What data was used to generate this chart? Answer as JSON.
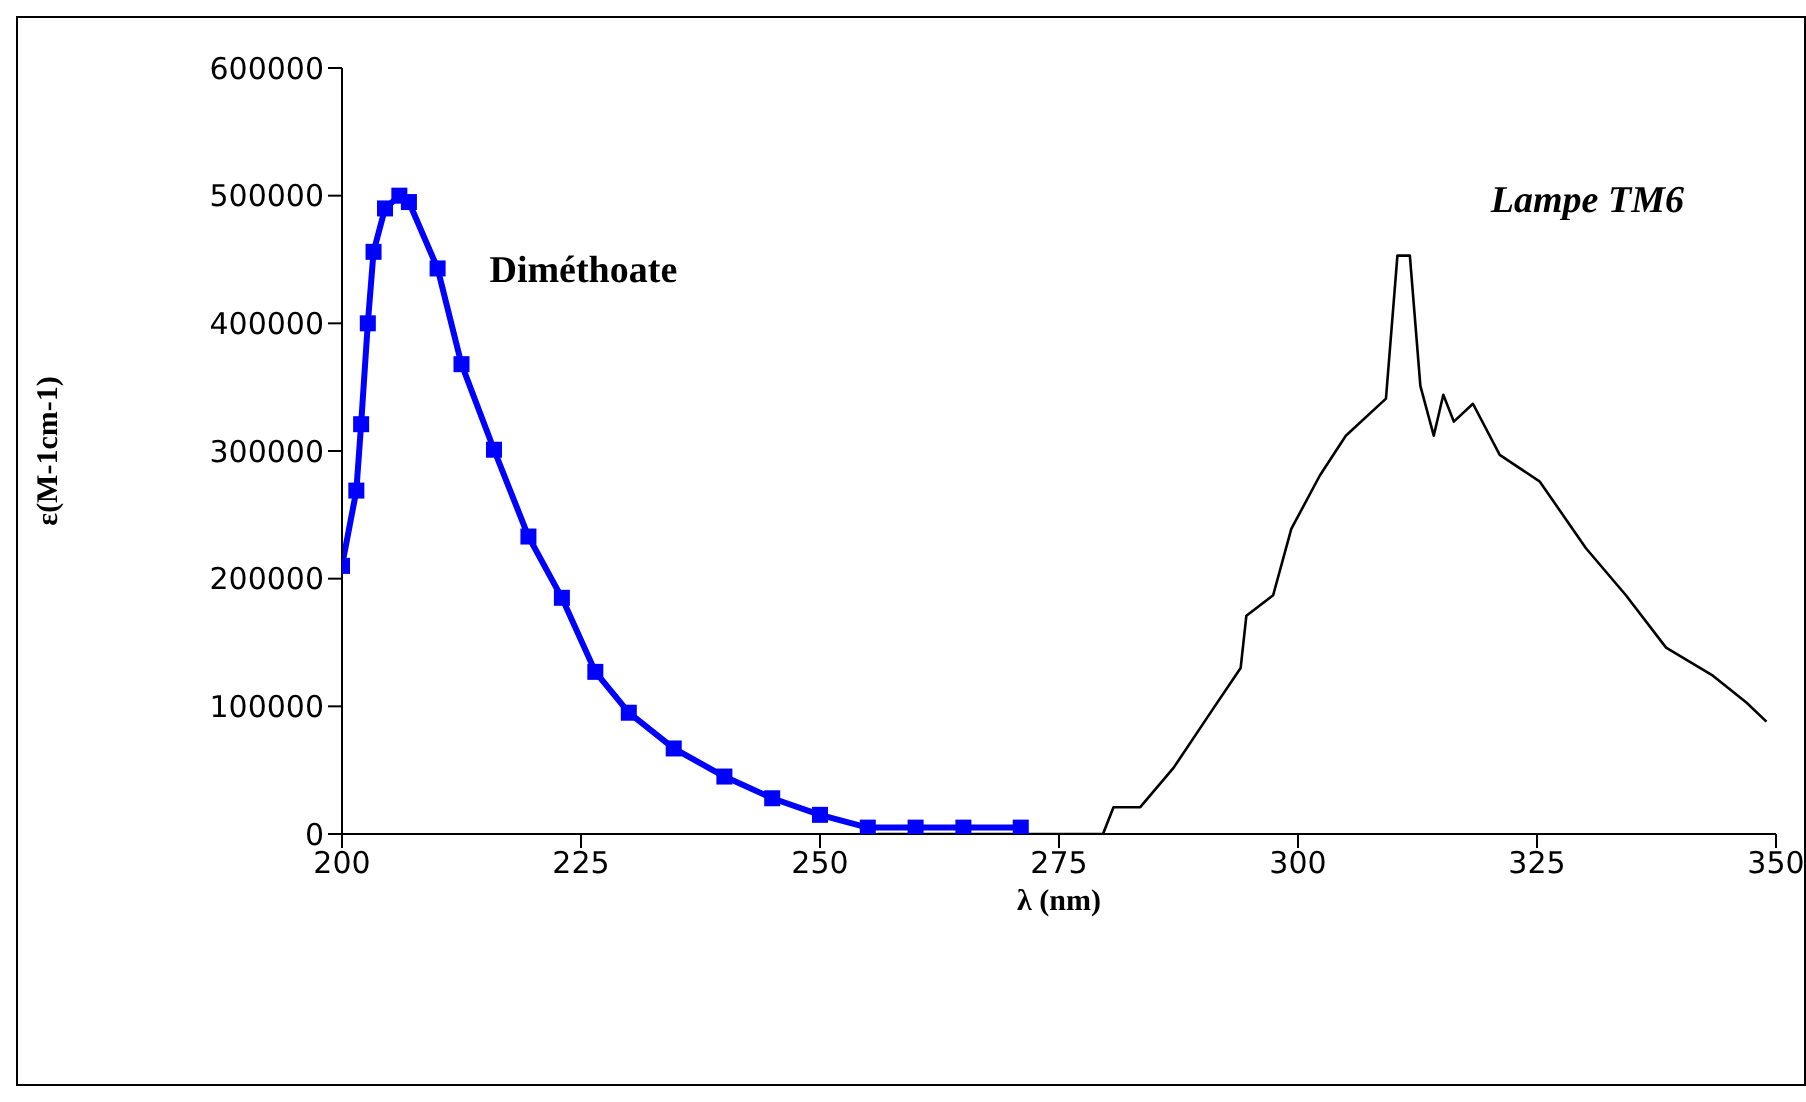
{
  "chart_data": {
    "type": "line",
    "xlabel": "λ (nm)",
    "ylabel": "ε(M-1cm-1)",
    "xlim": [
      200,
      350
    ],
    "xticks": [
      200,
      225,
      250,
      275,
      300,
      325,
      350
    ],
    "ylim": [
      0,
      600000
    ],
    "yticks": [
      0,
      100000,
      200000,
      300000,
      400000,
      500000,
      600000
    ],
    "grid": false,
    "legend": false,
    "line_style": "solid",
    "series": [
      {
        "name": "Diméthoate",
        "color": "#0000ff",
        "marker": "square",
        "x": [
          200,
          201.5,
          202,
          202.7,
          203.3,
          204.5,
          206,
          207,
          210,
          212.5,
          215.9,
          219.5,
          223,
          226.5,
          230,
          234.7,
          240,
          245,
          250,
          255,
          260,
          265,
          271
        ],
        "values": [
          210000,
          269000,
          321000,
          400000,
          456000,
          490000,
          500000,
          495000,
          443000,
          368000,
          301000,
          233000,
          185000,
          127000,
          95000,
          67000,
          45000,
          28000,
          15000,
          5000,
          5000,
          5000,
          5000
        ]
      },
      {
        "name": "Lampe TM6",
        "color": "#000000",
        "marker": "none",
        "x": [
          256,
          273,
          279.6,
          280.7,
          283.5,
          287,
          291.2,
          294,
          294.6,
          297.4,
          299.3,
          302.3,
          305,
          309.2,
          310.4,
          311.7,
          312.8,
          314.2,
          315.2,
          316.3,
          318.3,
          321.1,
          325.3,
          330.1,
          334.3,
          338.5,
          343.4,
          346.9,
          349
        ],
        "values": [
          0,
          0,
          0,
          21000,
          21000,
          52000,
          99000,
          130000,
          171000,
          187000,
          239000,
          281000,
          312000,
          341000,
          453000,
          453000,
          351000,
          312000,
          344000,
          323000,
          337000,
          297000,
          276000,
          224000,
          187000,
          146000,
          124000,
          103000,
          88000
        ]
      }
    ]
  }
}
